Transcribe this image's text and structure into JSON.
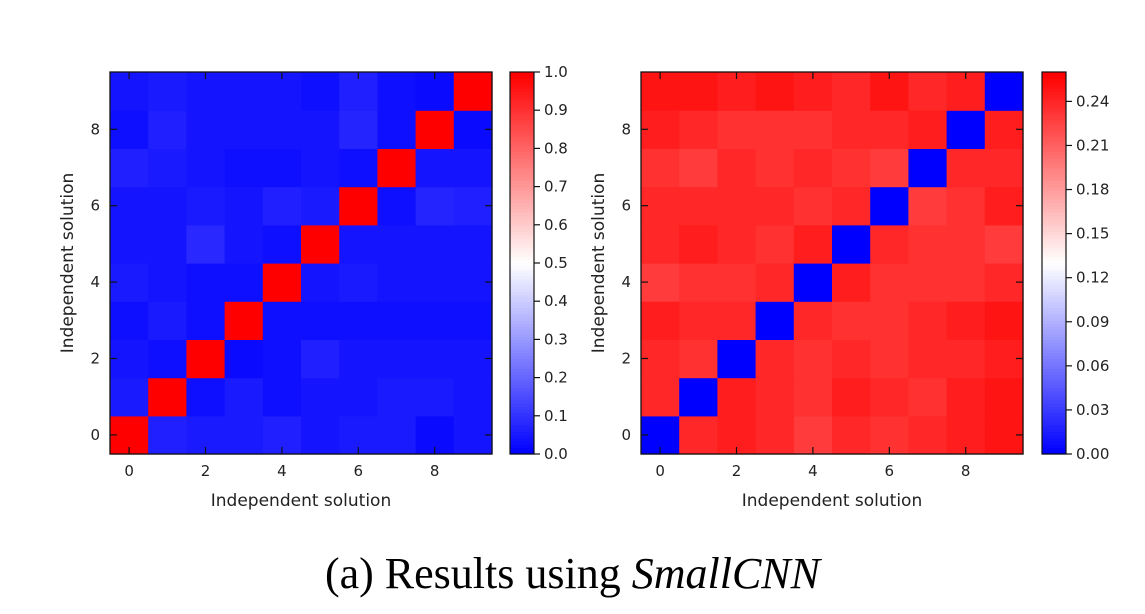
{
  "caption": {
    "prefix": "(a) Results using ",
    "emphasis": "SmallCNN"
  },
  "chart_data": [
    {
      "type": "heatmap",
      "title": "",
      "xlabel": "Independent solution",
      "ylabel": "Independent solution",
      "x": [
        0,
        1,
        2,
        3,
        4,
        5,
        6,
        7,
        8,
        9
      ],
      "y": [
        0,
        1,
        2,
        3,
        4,
        5,
        6,
        7,
        8,
        9
      ],
      "xticks": [
        0,
        2,
        4,
        6,
        8
      ],
      "yticks": [
        0,
        2,
        4,
        6,
        8
      ],
      "colorbar": {
        "range": [
          0,
          1.0
        ],
        "ticks": [
          0.0,
          0.1,
          0.2,
          0.3,
          0.4,
          0.5,
          0.6,
          0.7,
          0.8,
          0.9,
          1.0
        ],
        "tick_labels": [
          "0.0",
          "0.1",
          "0.2",
          "0.3",
          "0.4",
          "0.5",
          "0.6",
          "0.7",
          "0.8",
          "0.9",
          "1.0"
        ],
        "colormap": "bwr"
      },
      "values": [
        [
          1.0,
          0.06,
          0.05,
          0.05,
          0.06,
          0.04,
          0.05,
          0.05,
          0.02,
          0.04
        ],
        [
          0.05,
          1.0,
          0.03,
          0.05,
          0.03,
          0.04,
          0.04,
          0.05,
          0.05,
          0.04
        ],
        [
          0.04,
          0.03,
          1.0,
          0.02,
          0.03,
          0.06,
          0.04,
          0.04,
          0.04,
          0.04
        ],
        [
          0.03,
          0.05,
          0.03,
          1.0,
          0.03,
          0.03,
          0.03,
          0.03,
          0.03,
          0.03
        ],
        [
          0.05,
          0.04,
          0.03,
          0.03,
          1.0,
          0.04,
          0.05,
          0.04,
          0.04,
          0.04
        ],
        [
          0.04,
          0.04,
          0.08,
          0.04,
          0.03,
          1.0,
          0.04,
          0.04,
          0.04,
          0.04
        ],
        [
          0.04,
          0.04,
          0.05,
          0.04,
          0.06,
          0.05,
          1.0,
          0.03,
          0.07,
          0.06
        ],
        [
          0.06,
          0.05,
          0.04,
          0.03,
          0.03,
          0.04,
          0.03,
          1.0,
          0.04,
          0.04
        ],
        [
          0.03,
          0.06,
          0.04,
          0.04,
          0.04,
          0.04,
          0.07,
          0.03,
          1.0,
          0.02
        ],
        [
          0.04,
          0.05,
          0.04,
          0.04,
          0.04,
          0.03,
          0.06,
          0.03,
          0.02,
          1.0
        ]
      ]
    },
    {
      "type": "heatmap",
      "title": "",
      "xlabel": "Independent solution",
      "ylabel": "Independent solution",
      "x": [
        0,
        1,
        2,
        3,
        4,
        5,
        6,
        7,
        8,
        9
      ],
      "y": [
        0,
        1,
        2,
        3,
        4,
        5,
        6,
        7,
        8,
        9
      ],
      "xticks": [
        0,
        2,
        4,
        6,
        8
      ],
      "yticks": [
        0,
        2,
        4,
        6,
        8
      ],
      "colorbar": {
        "range": [
          0,
          0.26
        ],
        "ticks": [
          0.0,
          0.03,
          0.06,
          0.09,
          0.12,
          0.15,
          0.18,
          0.21,
          0.24
        ],
        "tick_labels": [
          "0.00",
          "0.03",
          "0.06",
          "0.09",
          "0.12",
          "0.15",
          "0.18",
          "0.21",
          "0.24"
        ],
        "colormap": "bwr"
      },
      "values": [
        [
          0.0,
          0.24,
          0.245,
          0.24,
          0.23,
          0.24,
          0.235,
          0.24,
          0.245,
          0.25
        ],
        [
          0.24,
          0.0,
          0.245,
          0.24,
          0.235,
          0.245,
          0.24,
          0.235,
          0.245,
          0.25
        ],
        [
          0.24,
          0.235,
          0.0,
          0.24,
          0.235,
          0.24,
          0.235,
          0.24,
          0.24,
          0.245
        ],
        [
          0.245,
          0.24,
          0.24,
          0.0,
          0.24,
          0.235,
          0.235,
          0.24,
          0.245,
          0.25
        ],
        [
          0.23,
          0.235,
          0.235,
          0.24,
          0.0,
          0.245,
          0.235,
          0.235,
          0.235,
          0.24
        ],
        [
          0.24,
          0.245,
          0.24,
          0.235,
          0.245,
          0.0,
          0.24,
          0.235,
          0.235,
          0.23
        ],
        [
          0.24,
          0.24,
          0.24,
          0.24,
          0.235,
          0.24,
          0.0,
          0.23,
          0.235,
          0.245
        ],
        [
          0.235,
          0.23,
          0.24,
          0.235,
          0.24,
          0.235,
          0.23,
          0.0,
          0.24,
          0.24
        ],
        [
          0.245,
          0.24,
          0.235,
          0.235,
          0.235,
          0.24,
          0.24,
          0.245,
          0.0,
          0.245
        ],
        [
          0.25,
          0.25,
          0.245,
          0.25,
          0.245,
          0.24,
          0.25,
          0.24,
          0.245,
          0.0
        ]
      ]
    }
  ]
}
